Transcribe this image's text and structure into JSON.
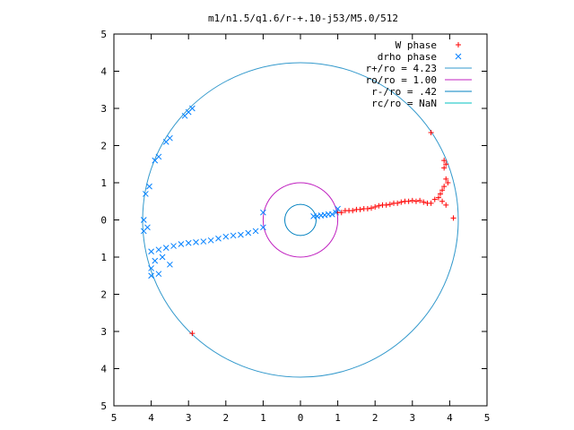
{
  "chart_data": {
    "type": "scatter",
    "title": "m1/n1.5/q1.6/r-+.10-j53/M5.0/512",
    "xlabel": "",
    "ylabel": "",
    "xlim": [
      -5,
      5
    ],
    "ylim": [
      -5,
      5
    ],
    "x_ticks": [
      -5,
      -4,
      -3,
      -2,
      -1,
      0,
      1,
      2,
      3,
      4,
      5
    ],
    "y_ticks": [
      -5,
      -4,
      -3,
      -2,
      -1,
      0,
      1,
      2,
      3,
      4,
      5
    ],
    "x_tick_labels": [
      "5",
      "4",
      "3",
      "2",
      "1",
      "0",
      "1",
      "2",
      "3",
      "4",
      "5"
    ],
    "y_tick_labels": [
      "5",
      "4",
      "3",
      "2",
      "1",
      "0",
      "1",
      "2",
      "3",
      "4",
      "5"
    ],
    "grid": false,
    "legend_position": "top-right",
    "legend": [
      {
        "label": "W phase",
        "kind": "marker",
        "marker": "plus",
        "color": "#ff0000"
      },
      {
        "label": "drho phase",
        "kind": "marker",
        "marker": "cross",
        "color": "#0080ff"
      },
      {
        "label": "r+/ro = 4.23",
        "kind": "line",
        "color": "#3399cc"
      },
      {
        "label": "ro/ro = 1.00",
        "kind": "line",
        "color": "#c020c0"
      },
      {
        "label": "r-/ro = .42",
        "kind": "line",
        "color": "#0080c0"
      },
      {
        "label": "rc/ro = NaN",
        "kind": "line",
        "color": "#00c0c0"
      }
    ],
    "series": [
      {
        "name": "W phase",
        "marker": "plus",
        "color": "#ff0000",
        "points": [
          [
            1.0,
            0.2
          ],
          [
            1.1,
            0.2
          ],
          [
            1.2,
            0.25
          ],
          [
            1.3,
            0.25
          ],
          [
            1.4,
            0.25
          ],
          [
            1.5,
            0.28
          ],
          [
            1.6,
            0.28
          ],
          [
            1.7,
            0.3
          ],
          [
            1.8,
            0.3
          ],
          [
            1.9,
            0.32
          ],
          [
            2.0,
            0.35
          ],
          [
            2.1,
            0.38
          ],
          [
            2.2,
            0.4
          ],
          [
            2.3,
            0.4
          ],
          [
            2.4,
            0.42
          ],
          [
            2.5,
            0.45
          ],
          [
            2.6,
            0.45
          ],
          [
            2.7,
            0.48
          ],
          [
            2.8,
            0.5
          ],
          [
            2.9,
            0.5
          ],
          [
            3.0,
            0.52
          ],
          [
            3.1,
            0.5
          ],
          [
            3.2,
            0.52
          ],
          [
            3.3,
            0.48
          ],
          [
            3.4,
            0.45
          ],
          [
            3.5,
            0.45
          ],
          [
            3.6,
            0.55
          ],
          [
            3.7,
            0.6
          ],
          [
            3.75,
            0.7
          ],
          [
            3.8,
            0.8
          ],
          [
            3.85,
            0.9
          ],
          [
            3.9,
            1.1
          ],
          [
            3.95,
            1.0
          ],
          [
            3.8,
            0.5
          ],
          [
            3.9,
            0.4
          ],
          [
            3.85,
            1.4
          ],
          [
            3.9,
            1.5
          ],
          [
            3.85,
            1.6
          ],
          [
            3.5,
            2.35
          ],
          [
            4.1,
            0.05
          ],
          [
            -2.9,
            -3.05
          ]
        ]
      },
      {
        "name": "drho phase",
        "marker": "cross",
        "color": "#0080ff",
        "points": [
          [
            0.35,
            0.1
          ],
          [
            0.45,
            0.1
          ],
          [
            0.55,
            0.12
          ],
          [
            0.65,
            0.13
          ],
          [
            0.75,
            0.15
          ],
          [
            0.85,
            0.15
          ],
          [
            0.95,
            0.2
          ],
          [
            -1.0,
            -0.2
          ],
          [
            -1.2,
            -0.3
          ],
          [
            -1.4,
            -0.35
          ],
          [
            -1.6,
            -0.4
          ],
          [
            -1.8,
            -0.42
          ],
          [
            -2.0,
            -0.45
          ],
          [
            -2.2,
            -0.5
          ],
          [
            -2.4,
            -0.55
          ],
          [
            -2.6,
            -0.58
          ],
          [
            -2.8,
            -0.6
          ],
          [
            -3.0,
            -0.62
          ],
          [
            -3.2,
            -0.65
          ],
          [
            -3.4,
            -0.7
          ],
          [
            -3.6,
            -0.75
          ],
          [
            -3.8,
            -0.8
          ],
          [
            -4.0,
            -0.85
          ],
          [
            -3.7,
            -1.0
          ],
          [
            -3.9,
            -1.1
          ],
          [
            -4.1,
            -0.2
          ],
          [
            -4.2,
            -0.3
          ],
          [
            -4.0,
            -1.3
          ],
          [
            -3.8,
            -1.45
          ],
          [
            -4.0,
            -1.5
          ],
          [
            -3.5,
            -1.2
          ],
          [
            -4.2,
            0.0
          ],
          [
            -4.15,
            0.7
          ],
          [
            -4.05,
            0.9
          ],
          [
            -3.9,
            1.6
          ],
          [
            -3.8,
            1.7
          ],
          [
            -3.6,
            2.1
          ],
          [
            -3.5,
            2.2
          ],
          [
            -3.1,
            2.8
          ],
          [
            -3.0,
            2.9
          ],
          [
            -2.9,
            3.0
          ],
          [
            -1.0,
            0.2
          ],
          [
            1.0,
            0.3
          ]
        ]
      }
    ],
    "circles": [
      {
        "name": "r+/ro = 4.23",
        "radius": 4.23,
        "color": "#3399cc"
      },
      {
        "name": "ro/ro = 1.00",
        "radius": 1.0,
        "color": "#c020c0"
      },
      {
        "name": "r-/ro = .42",
        "radius": 0.42,
        "color": "#0080c0"
      }
    ]
  }
}
